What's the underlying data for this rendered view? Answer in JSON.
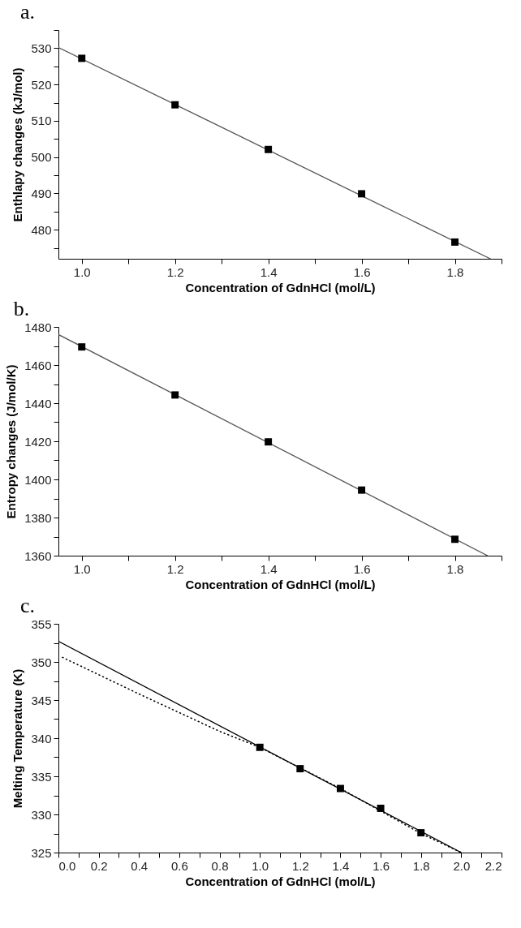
{
  "chart_data": [
    {
      "type": "scatter",
      "title": "a.",
      "xlabel": "Concentration of GdnHCl (mol/L)",
      "ylabel": "Enthlapy changes (kJ/mol)",
      "xlim": [
        0.95,
        1.9
      ],
      "ylim": [
        472,
        535
      ],
      "xticks": [
        {
          "value": 1.0,
          "label": "1.0"
        },
        {
          "value": 1.1,
          "label": null
        },
        {
          "value": 1.2,
          "label": "1.2"
        },
        {
          "value": 1.3,
          "label": null
        },
        {
          "value": 1.4,
          "label": "1.4"
        },
        {
          "value": 1.5,
          "label": null
        },
        {
          "value": 1.6,
          "label": "1.6"
        },
        {
          "value": 1.7,
          "label": null
        },
        {
          "value": 1.8,
          "label": "1.8"
        },
        {
          "value": 1.9,
          "label": null
        }
      ],
      "yticks": [
        {
          "value": 475,
          "label": null
        },
        480,
        {
          "value": 485,
          "label": null
        },
        490,
        {
          "value": 495,
          "label": null
        },
        500,
        {
          "value": 505,
          "label": null
        },
        510,
        {
          "value": 515,
          "label": null
        },
        520,
        {
          "value": 525,
          "label": null
        },
        530,
        {
          "value": 535,
          "label": null
        }
      ],
      "x": [
        1.0,
        1.2,
        1.4,
        1.6,
        1.8
      ],
      "series": [
        {
          "color": "#000000",
          "marker": "square",
          "values": [
            527.2,
            514.4,
            502.1,
            489.9,
            476.6
          ]
        },
        {
          "type": "line",
          "color": "#555555",
          "marker": "none",
          "x": [
            0.95,
            1.876
          ],
          "values": [
            530.2,
            472
          ]
        }
      ]
    },
    {
      "type": "scatter",
      "title": "b.",
      "xlabel": "Concentration of GdnHCl (mol/L)",
      "ylabel": "Entropy changes (J/mol/K)",
      "xlim": [
        0.95,
        1.9
      ],
      "ylim": [
        1360,
        1480
      ],
      "xticks": [
        {
          "value": 1.0,
          "label": "1.0"
        },
        {
          "value": 1.1,
          "label": null
        },
        {
          "value": 1.2,
          "label": "1.2"
        },
        {
          "value": 1.3,
          "label": null
        },
        {
          "value": 1.4,
          "label": "1.4"
        },
        {
          "value": 1.5,
          "label": null
        },
        {
          "value": 1.6,
          "label": "1.6"
        },
        {
          "value": 1.7,
          "label": null
        },
        {
          "value": 1.8,
          "label": "1.8"
        },
        {
          "value": 1.9,
          "label": null
        }
      ],
      "yticks": [
        1360,
        {
          "value": 1370,
          "label": null
        },
        1380,
        {
          "value": 1390,
          "label": null
        },
        1400,
        {
          "value": 1410,
          "label": null
        },
        1420,
        {
          "value": 1430,
          "label": null
        },
        1440,
        {
          "value": 1450,
          "label": null
        },
        1460,
        {
          "value": 1470,
          "label": null
        },
        1480
      ],
      "x": [
        1.0,
        1.2,
        1.4,
        1.6,
        1.8
      ],
      "series": [
        {
          "color": "#000000",
          "marker": "square",
          "values": [
            1469.5,
            1444.3,
            1419.7,
            1394.4,
            1368.6
          ]
        },
        {
          "type": "line",
          "color": "#555555",
          "marker": "none",
          "x": [
            0.95,
            1.87
          ],
          "values": [
            1476,
            1360
          ]
        }
      ]
    },
    {
      "type": "scatter",
      "title": "c.",
      "xlabel": "Concentration of GdnHCl (mol/L)",
      "ylabel": "Melting Temperature (K)",
      "xlim": [
        0,
        2.2
      ],
      "ylim": [
        325,
        355
      ],
      "xticks": [
        {
          "value": 0,
          "label": "0.0"
        },
        {
          "value": 0.1,
          "label": null
        },
        {
          "value": 0.2,
          "label": "0.2"
        },
        {
          "value": 0.3,
          "label": null
        },
        {
          "value": 0.4,
          "label": "0.4"
        },
        {
          "value": 0.5,
          "label": null
        },
        {
          "value": 0.6,
          "label": "0.6"
        },
        {
          "value": 0.7,
          "label": null
        },
        {
          "value": 0.8,
          "label": "0.8"
        },
        {
          "value": 0.9,
          "label": null
        },
        {
          "value": 1.0,
          "label": "1.0"
        },
        {
          "value": 1.1,
          "label": null
        },
        {
          "value": 1.2,
          "label": "1.2"
        },
        {
          "value": 1.3,
          "label": null
        },
        {
          "value": 1.4,
          "label": "1.4"
        },
        {
          "value": 1.5,
          "label": null
        },
        {
          "value": 1.6,
          "label": "1.6"
        },
        {
          "value": 1.7,
          "label": null
        },
        {
          "value": 1.8,
          "label": "1.8"
        },
        {
          "value": 1.9,
          "label": null
        },
        {
          "value": 2.0,
          "label": "2.0"
        },
        {
          "value": 2.1,
          "label": null
        },
        {
          "value": 2.2,
          "label": "2.2"
        }
      ],
      "yticks": [
        325,
        {
          "value": 327.5,
          "label": null
        },
        330,
        {
          "value": 332.5,
          "label": null
        },
        335,
        {
          "value": 337.5,
          "label": null
        },
        340,
        {
          "value": 342.5,
          "label": null
        },
        345,
        {
          "value": 347.5,
          "label": null
        },
        350,
        {
          "value": 352.5,
          "label": null
        },
        355
      ],
      "x": [
        1.0,
        1.2,
        1.4,
        1.6,
        1.8
      ],
      "series": [
        {
          "color": "#000000",
          "marker": "square",
          "values": [
            338.8,
            336.0,
            333.4,
            330.8,
            327.6
          ]
        },
        {
          "type": "line",
          "color": "#000000",
          "marker": "none",
          "line_style": "solid",
          "x": [
            0,
            2.0
          ],
          "values": [
            352.7,
            325
          ]
        },
        {
          "type": "line",
          "color": "#000000",
          "marker": "none",
          "line_style": "dotted",
          "x": [
            0.02,
            0.4,
            0.8,
            1.0,
            1.4,
            1.8,
            2.0
          ],
          "values": [
            350.6,
            345.8,
            340.9,
            338.8,
            333.4,
            327.5,
            325
          ]
        }
      ]
    }
  ]
}
